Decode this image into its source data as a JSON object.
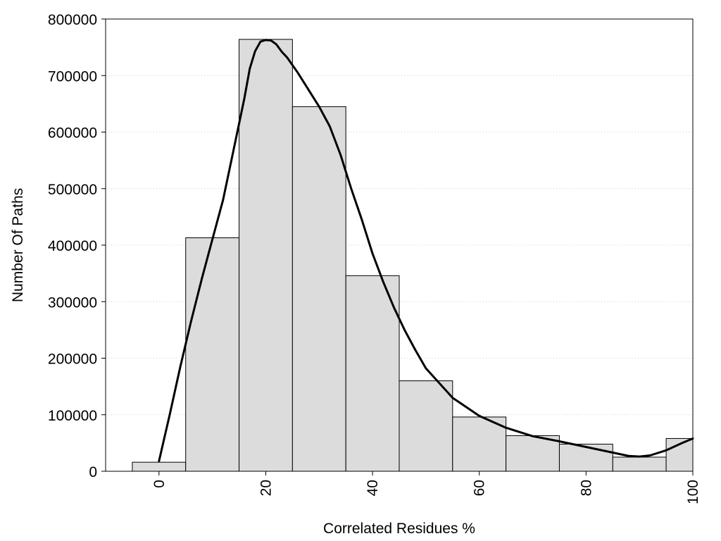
{
  "chart_data": {
    "type": "bar",
    "title": "",
    "xlabel": "Correlated Residues %",
    "ylabel": "Number Of Paths",
    "xlim": [
      -10,
      100
    ],
    "ylim": [
      0,
      800000
    ],
    "grid": true,
    "x_ticks": [
      "0",
      "20",
      "40",
      "60",
      "80",
      "100"
    ],
    "y_ticks": [
      "0",
      "100000",
      "200000",
      "300000",
      "400000",
      "500000",
      "600000",
      "700000",
      "800000"
    ],
    "bins": [
      {
        "from": -5,
        "to": 5,
        "value": 16000
      },
      {
        "from": 5,
        "to": 15,
        "value": 413000
      },
      {
        "from": 15,
        "to": 25,
        "value": 764000
      },
      {
        "from": 25,
        "to": 35,
        "value": 645000
      },
      {
        "from": 35,
        "to": 45,
        "value": 346000
      },
      {
        "from": 45,
        "to": 55,
        "value": 160000
      },
      {
        "from": 55,
        "to": 65,
        "value": 96000
      },
      {
        "from": 65,
        "to": 75,
        "value": 63000
      },
      {
        "from": 75,
        "to": 85,
        "value": 48000
      },
      {
        "from": 85,
        "to": 95,
        "value": 25000
      },
      {
        "from": 95,
        "to": 100,
        "value": 58000
      }
    ],
    "curve": {
      "x": [
        0,
        2,
        4,
        6,
        8,
        10,
        12,
        14,
        16,
        17,
        18,
        19,
        20,
        21,
        22,
        23,
        24,
        26,
        28,
        30,
        32,
        34,
        36,
        38,
        40,
        42,
        44,
        46,
        48,
        50,
        55,
        60,
        65,
        70,
        75,
        80,
        85,
        88,
        90,
        92,
        95,
        98,
        100
      ],
      "y": [
        18000,
        100000,
        185000,
        265000,
        340000,
        410000,
        480000,
        570000,
        660000,
        712000,
        743000,
        760000,
        763000,
        762000,
        755000,
        742000,
        732000,
        705000,
        675000,
        645000,
        610000,
        560000,
        500000,
        445000,
        385000,
        335000,
        290000,
        250000,
        215000,
        182000,
        130000,
        98000,
        77000,
        62000,
        53000,
        43000,
        33000,
        27000,
        26000,
        28000,
        37000,
        50000,
        58000
      ]
    },
    "colors": {
      "bar_fill": "#dcdcdc",
      "bar_stroke": "#000000",
      "curve": "#000000",
      "grid": "#cccccc"
    }
  }
}
